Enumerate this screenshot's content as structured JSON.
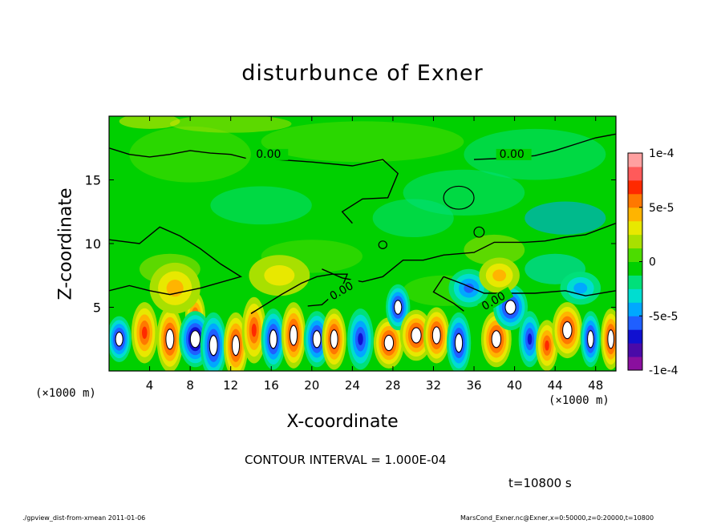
{
  "chart_data": {
    "type": "heatmap",
    "title": "disturbunce of Exner",
    "xlabel": "X-coordinate",
    "ylabel": "Z-coordinate",
    "x_unit": "(×1000 m)",
    "xlim": [
      0,
      50
    ],
    "ylim": [
      0,
      20
    ],
    "x_ticks": [
      4,
      8,
      12,
      16,
      20,
      24,
      28,
      32,
      36,
      40,
      44,
      48
    ],
    "y_ticks": [
      5,
      10,
      15
    ],
    "colorbar": {
      "range": [
        -0.0001,
        0.0001
      ],
      "tick_labels": [
        "1e-4",
        "5e-5",
        "0",
        "-5e-5",
        "-1e-4"
      ],
      "tick_values": [
        0.0001,
        5e-05,
        0,
        -5e-05,
        -0.0001
      ],
      "colors": [
        "#8a0f9e",
        "#4a0aa8",
        "#1010d0",
        "#1f5fff",
        "#00a8ff",
        "#00ddd0",
        "#00e07a",
        "#00d000",
        "#4cdc00",
        "#a8e000",
        "#e8e800",
        "#ffb400",
        "#ff7800",
        "#ff2a00",
        "#ff5a5a",
        "#ffa0a0"
      ]
    },
    "contour_labels": [
      "0.00",
      "0.00",
      "0.00",
      "0.00"
    ],
    "contour_interval_text": "CONTOUR INTERVAL = 1.000E-04",
    "time_text": "t=10800 s"
  },
  "footer": {
    "left": "./gpview_dist-from-xmean   2011-01-06",
    "right": "MarsCond_Exner.nc@Exner,x=0:50000,z=0:20000,t=10800"
  }
}
